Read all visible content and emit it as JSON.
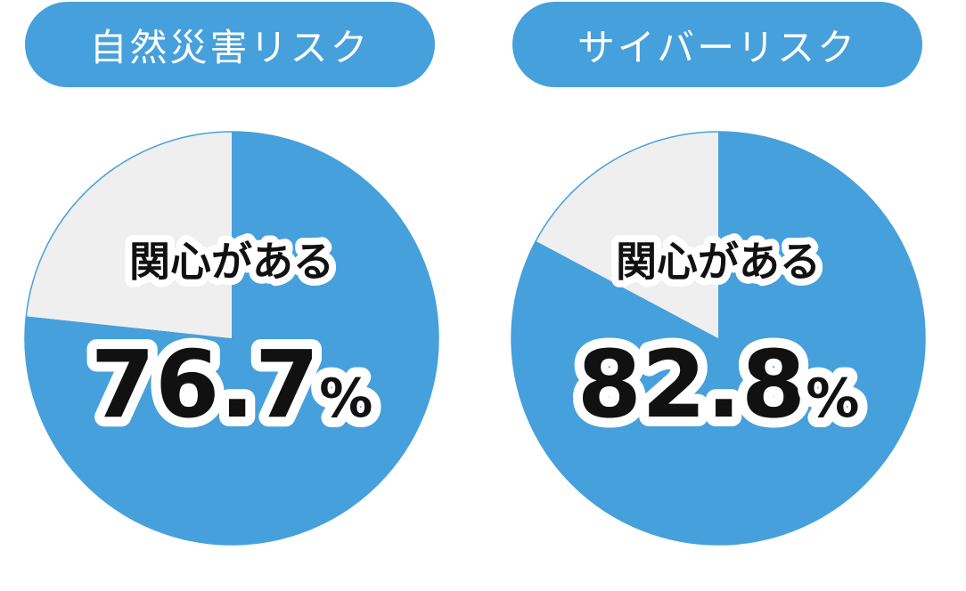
{
  "colors": {
    "accent": "#46a0dc",
    "rest": "#efefef",
    "text": "#111111"
  },
  "chart_data": [
    {
      "type": "pie",
      "title": "自然災害リスク",
      "categories": [
        "関心がある",
        ""
      ],
      "values": [
        76.7,
        23.3
      ],
      "label": "関心がある",
      "value_text": "76.7",
      "unit": "%"
    },
    {
      "type": "pie",
      "title": "サイバーリスク",
      "categories": [
        "関心がある",
        ""
      ],
      "values": [
        82.8,
        17.2
      ],
      "label": "関心がある",
      "value_text": "82.8",
      "unit": "%"
    }
  ]
}
